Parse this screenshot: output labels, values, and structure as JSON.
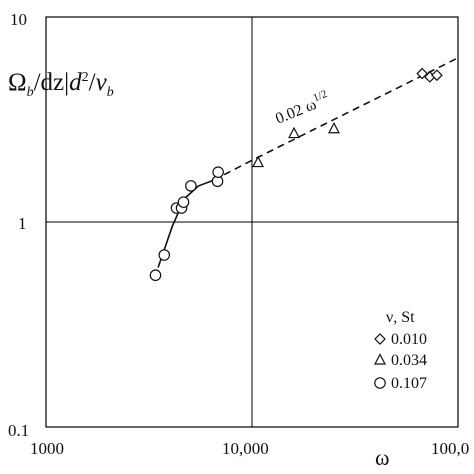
{
  "chart_data": {
    "type": "scatter",
    "xscale": "log",
    "yscale": "log",
    "xlim": [
      1000,
      100000
    ],
    "ylim": [
      0.1,
      10
    ],
    "grid": true,
    "xlabel": "ω",
    "ylabel": "Ω_b/dz|d²/v_b",
    "x_ticks": [
      "1000",
      "10,000",
      "100,0"
    ],
    "y_ticks": [
      "10",
      "1",
      "0.1"
    ],
    "annotation": "0.02 ω^1/2",
    "legend": {
      "title": "ν, St",
      "placement": "bottom-right",
      "entries": [
        {
          "marker": "diamond",
          "label": "0.010"
        },
        {
          "marker": "triangle",
          "label": "0.034"
        },
        {
          "marker": "circle",
          "label": "0.107"
        }
      ]
    },
    "series": [
      {
        "label": "0.010",
        "marker": "diamond",
        "points": [
          [
            67000,
            5.3
          ],
          [
            73000,
            5.1
          ],
          [
            79000,
            5.2
          ]
        ]
      },
      {
        "label": "0.034",
        "marker": "triangle",
        "points": [
          [
            10700,
            1.95
          ],
          [
            16000,
            2.7
          ],
          [
            25000,
            2.85
          ]
        ]
      },
      {
        "label": "0.107",
        "marker": "circle",
        "points": [
          [
            3400,
            0.55
          ],
          [
            3750,
            0.69
          ],
          [
            4300,
            1.17
          ],
          [
            4550,
            1.17
          ],
          [
            4650,
            1.25
          ],
          [
            5050,
            1.5
          ],
          [
            6800,
            1.58
          ],
          [
            6850,
            1.75
          ]
        ]
      }
    ],
    "fit_solid": [
      [
        3500,
        0.6
      ],
      [
        4100,
        0.95
      ],
      [
        4700,
        1.3
      ],
      [
        5500,
        1.5
      ],
      [
        6500,
        1.6
      ]
    ],
    "fit_dashed": [
      [
        6500,
        1.6
      ],
      [
        10000,
        2.0
      ],
      [
        20000,
        2.83
      ],
      [
        50000,
        4.47
      ],
      [
        100000,
        6.32
      ]
    ]
  }
}
